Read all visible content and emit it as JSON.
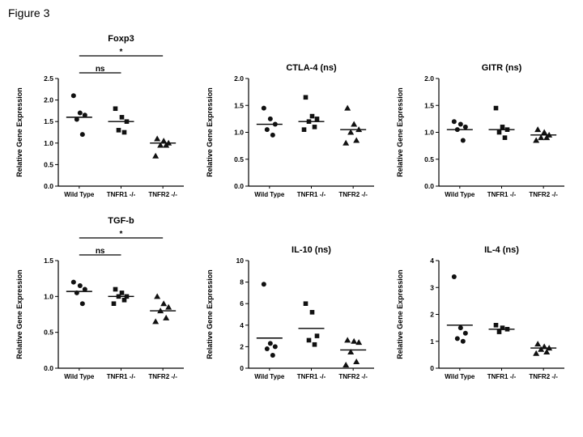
{
  "page": {
    "figure_label": "Figure 3"
  },
  "chart_data": [
    {
      "type": "scatter",
      "title": "Foxp3",
      "ylabel": "Relative Gene Expression",
      "ylim": [
        0,
        2.5
      ],
      "yticks": [
        0,
        0.5,
        1,
        1.5,
        2,
        2.5
      ],
      "tick_decimals": 1,
      "categories": [
        "Wild Type",
        "TNFR1 -/-",
        "TNFR2 -/-"
      ],
      "markers": [
        "circle",
        "square",
        "triangle"
      ],
      "grid": false,
      "legend": "none",
      "groups": [
        {
          "category": "Wild Type",
          "marker": "circle",
          "values": [
            2.1,
            1.7,
            1.65,
            1.55,
            1.2
          ],
          "mean": 1.6
        },
        {
          "category": "TNFR1 -/-",
          "marker": "square",
          "values": [
            1.8,
            1.6,
            1.5,
            1.3,
            1.25
          ],
          "mean": 1.5
        },
        {
          "category": "TNFR2 -/-",
          "marker": "triangle",
          "values": [
            1.1,
            1.05,
            1.0,
            0.95,
            0.95,
            0.7
          ],
          "mean": 1.0
        }
      ],
      "annotations": [
        {
          "label": "ns",
          "from": 0,
          "to": 1,
          "level": 1
        },
        {
          "label": "*",
          "from": 0,
          "to": 2,
          "level": 2
        }
      ]
    },
    {
      "type": "scatter",
      "title": "CTLA-4 (ns)",
      "ylabel": "Relative Gene Expression",
      "ylim": [
        0,
        2.0
      ],
      "yticks": [
        0,
        0.5,
        1,
        1.5,
        2
      ],
      "tick_decimals": 1,
      "categories": [
        "Wild Type",
        "TNFR1 -/-",
        "TNFR2 -/-"
      ],
      "markers": [
        "circle",
        "square",
        "triangle"
      ],
      "grid": false,
      "legend": "none",
      "groups": [
        {
          "category": "Wild Type",
          "marker": "circle",
          "values": [
            1.45,
            1.25,
            1.15,
            1.05,
            0.95
          ],
          "mean": 1.15
        },
        {
          "category": "TNFR1 -/-",
          "marker": "square",
          "values": [
            1.65,
            1.3,
            1.25,
            1.2,
            1.1,
            1.05
          ],
          "mean": 1.2
        },
        {
          "category": "TNFR2 -/-",
          "marker": "triangle",
          "values": [
            1.45,
            1.15,
            1.05,
            1.0,
            0.85,
            0.8
          ],
          "mean": 1.05
        }
      ],
      "annotations": []
    },
    {
      "type": "scatter",
      "title": "GITR (ns)",
      "ylabel": "Relative Gene Expression",
      "ylim": [
        0,
        2.0
      ],
      "yticks": [
        0,
        0.5,
        1,
        1.5,
        2
      ],
      "tick_decimals": 1,
      "categories": [
        "Wild Type",
        "TNFR1 -/-",
        "TNFR2 -/-"
      ],
      "markers": [
        "circle",
        "square",
        "triangle"
      ],
      "grid": false,
      "legend": "none",
      "groups": [
        {
          "category": "Wild Type",
          "marker": "circle",
          "values": [
            1.2,
            1.15,
            1.1,
            1.05,
            0.85
          ],
          "mean": 1.05
        },
        {
          "category": "TNFR1 -/-",
          "marker": "square",
          "values": [
            1.45,
            1.1,
            1.05,
            1.0,
            0.9
          ],
          "mean": 1.05
        },
        {
          "category": "TNFR2 -/-",
          "marker": "triangle",
          "values": [
            1.05,
            1.0,
            0.95,
            0.9,
            0.9,
            0.85
          ],
          "mean": 0.95
        }
      ],
      "annotations": []
    },
    {
      "type": "scatter",
      "title": "TGF-b",
      "ylabel": "Relative Gene Expression",
      "ylim": [
        0,
        1.5
      ],
      "yticks": [
        0,
        0.5,
        1,
        1.5
      ],
      "tick_decimals": 1,
      "categories": [
        "Wild Type",
        "TNFR1 -/-",
        "TNFR2 -/-"
      ],
      "markers": [
        "circle",
        "square",
        "triangle"
      ],
      "grid": false,
      "legend": "none",
      "groups": [
        {
          "category": "Wild Type",
          "marker": "circle",
          "values": [
            1.2,
            1.15,
            1.1,
            1.05,
            0.9
          ],
          "mean": 1.07
        },
        {
          "category": "TNFR1 -/-",
          "marker": "square",
          "values": [
            1.1,
            1.05,
            1.0,
            1.0,
            0.95,
            0.9
          ],
          "mean": 1.0
        },
        {
          "category": "TNFR2 -/-",
          "marker": "triangle",
          "values": [
            1.0,
            0.9,
            0.85,
            0.8,
            0.7,
            0.65
          ],
          "mean": 0.8
        }
      ],
      "annotations": [
        {
          "label": "ns",
          "from": 0,
          "to": 1,
          "level": 1
        },
        {
          "label": "*",
          "from": 0,
          "to": 2,
          "level": 2
        }
      ]
    },
    {
      "type": "scatter",
      "title": "IL-10 (ns)",
      "ylabel": "Relative Gene Expression",
      "ylim": [
        0,
        10
      ],
      "yticks": [
        0,
        2,
        4,
        6,
        8,
        10
      ],
      "tick_decimals": 0,
      "categories": [
        "Wild Type",
        "TNFR1 -/-",
        "TNFR2 -/-"
      ],
      "markers": [
        "circle",
        "square",
        "triangle"
      ],
      "grid": false,
      "legend": "none",
      "groups": [
        {
          "category": "Wild Type",
          "marker": "circle",
          "values": [
            7.8,
            2.3,
            2.0,
            1.8,
            1.2
          ],
          "mean": 2.8
        },
        {
          "category": "TNFR1 -/-",
          "marker": "square",
          "values": [
            6.0,
            5.2,
            3.0,
            2.6,
            2.2
          ],
          "mean": 3.7
        },
        {
          "category": "TNFR2 -/-",
          "marker": "triangle",
          "values": [
            2.6,
            2.5,
            2.4,
            1.5,
            0.6,
            0.3
          ],
          "mean": 1.7
        }
      ],
      "annotations": []
    },
    {
      "type": "scatter",
      "title": "IL-4 (ns)",
      "ylabel": "Relative Gene Expression",
      "ylim": [
        0,
        4
      ],
      "yticks": [
        0,
        1,
        2,
        3,
        4
      ],
      "tick_decimals": 0,
      "categories": [
        "Wild Type",
        "TNFR1 -/-",
        "TNFR2 -/-"
      ],
      "markers": [
        "circle",
        "square",
        "triangle"
      ],
      "grid": false,
      "legend": "none",
      "groups": [
        {
          "category": "Wild Type",
          "marker": "circle",
          "values": [
            3.4,
            1.5,
            1.3,
            1.1,
            1.0
          ],
          "mean": 1.6
        },
        {
          "category": "TNFR1 -/-",
          "marker": "square",
          "values": [
            1.6,
            1.5,
            1.45,
            1.35
          ],
          "mean": 1.45
        },
        {
          "category": "TNFR2 -/-",
          "marker": "triangle",
          "values": [
            0.9,
            0.8,
            0.75,
            0.7,
            0.6,
            0.55
          ],
          "mean": 0.75
        }
      ],
      "annotations": []
    }
  ]
}
